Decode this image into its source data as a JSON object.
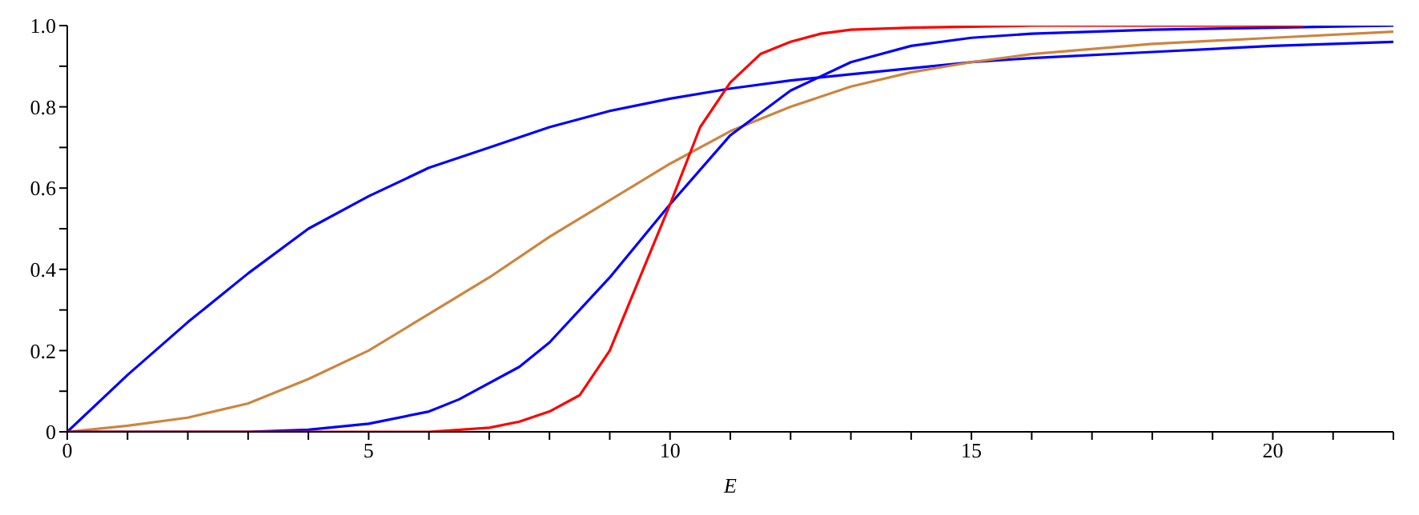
{
  "chart_data": {
    "type": "line",
    "xlabel": "E",
    "xlim": [
      0,
      22
    ],
    "xticks": [
      0,
      {
        "value": 1,
        "label": null
      },
      {
        "value": 2,
        "label": null
      },
      {
        "value": 3,
        "label": null
      },
      {
        "value": 4,
        "label": null
      },
      5,
      {
        "value": 6,
        "label": null
      },
      {
        "value": 7,
        "label": null
      },
      {
        "value": 8,
        "label": null
      },
      {
        "value": 9,
        "label": null
      },
      10,
      {
        "value": 11,
        "label": null
      },
      {
        "value": 12,
        "label": null
      },
      {
        "value": 13,
        "label": null
      },
      {
        "value": 14,
        "label": null
      },
      15,
      {
        "value": 16,
        "label": null
      },
      {
        "value": 17,
        "label": null
      },
      {
        "value": 18,
        "label": null
      },
      {
        "value": 19,
        "label": null
      },
      20,
      {
        "value": 21,
        "label": null
      },
      {
        "value": 22,
        "label": null
      }
    ],
    "ylim": [
      0,
      1
    ],
    "yticks": [
      0,
      {
        "value": 0.1,
        "label": null
      },
      0.2,
      {
        "value": 0.3,
        "label": null
      },
      0.4,
      {
        "value": 0.5,
        "label": null
      },
      0.6,
      {
        "value": 0.7,
        "label": null
      },
      0.8,
      {
        "value": 0.9,
        "label": null
      },
      {
        "value": 1,
        "label": "1.0"
      }
    ],
    "grid": false,
    "legend": false,
    "marker": "none",
    "line_style": "solid",
    "series": [
      {
        "color": "#0000ff",
        "x": [
          0,
          1,
          2,
          3,
          4,
          5,
          6,
          7,
          8,
          9,
          10,
          11,
          12,
          13,
          14,
          15,
          16,
          18,
          20,
          22
        ],
        "values": [
          0,
          0.14,
          0.27,
          0.39,
          0.5,
          0.58,
          0.65,
          0.7,
          0.75,
          0.79,
          0.82,
          0.845,
          0.865,
          0.88,
          0.895,
          0.91,
          0.92,
          0.935,
          0.95,
          0.96
        ]
      },
      {
        "color": "#cd853f",
        "x": [
          0,
          1,
          2,
          3,
          4,
          5,
          6,
          7,
          8,
          9,
          10,
          11,
          12,
          13,
          14,
          15,
          16,
          18,
          20,
          22
        ],
        "values": [
          0,
          0.015,
          0.035,
          0.07,
          0.13,
          0.2,
          0.29,
          0.38,
          0.48,
          0.57,
          0.66,
          0.74,
          0.8,
          0.85,
          0.885,
          0.91,
          0.93,
          0.955,
          0.97,
          0.985
        ]
      },
      {
        "color": "#0000ff",
        "x": [
          0,
          3,
          4,
          5,
          6,
          6.5,
          7.5,
          8,
          9,
          10,
          11,
          12,
          13,
          14,
          15,
          16,
          18,
          20,
          22
        ],
        "values": [
          0,
          0,
          0.005,
          0.02,
          0.05,
          0.08,
          0.16,
          0.22,
          0.38,
          0.56,
          0.73,
          0.84,
          0.91,
          0.95,
          0.97,
          0.98,
          0.99,
          0.995,
          1
        ]
      },
      {
        "color": "#ff0000",
        "x": [
          0,
          6,
          7,
          7.5,
          8,
          8.5,
          9,
          9.5,
          10,
          10.5,
          11,
          11.5,
          12,
          12.5,
          13,
          14,
          16,
          20.5
        ],
        "values": [
          0,
          0,
          0.01,
          0.025,
          0.05,
          0.09,
          0.2,
          0.38,
          0.56,
          0.75,
          0.86,
          0.93,
          0.96,
          0.98,
          0.99,
          0.995,
          1,
          1
        ]
      }
    ]
  }
}
